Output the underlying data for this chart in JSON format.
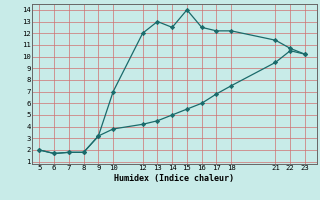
{
  "xlabel": "Humidex (Indice chaleur)",
  "background_color": "#c8ebe8",
  "line_color": "#1a6b6b",
  "grid_color": "#d07070",
  "xlim": [
    4.5,
    23.8
  ],
  "ylim": [
    0.8,
    14.5
  ],
  "xticks": [
    5,
    6,
    7,
    8,
    9,
    10,
    12,
    13,
    14,
    15,
    16,
    17,
    18,
    21,
    22,
    23
  ],
  "yticks": [
    1,
    2,
    3,
    4,
    5,
    6,
    7,
    8,
    9,
    10,
    11,
    12,
    13,
    14
  ],
  "upper_x": [
    5,
    6,
    7,
    8,
    9,
    10,
    12,
    13,
    14,
    15,
    16,
    17,
    18,
    21,
    22,
    23
  ],
  "upper_y": [
    2.0,
    1.7,
    1.8,
    1.8,
    3.2,
    7.0,
    12.0,
    13.0,
    12.5,
    14.0,
    12.5,
    12.2,
    12.2,
    11.4,
    10.7,
    10.2
  ],
  "lower_x": [
    5,
    6,
    7,
    8,
    9,
    10,
    12,
    13,
    14,
    15,
    16,
    17,
    18,
    21,
    22,
    23
  ],
  "lower_y": [
    2.0,
    1.7,
    1.8,
    1.8,
    3.2,
    3.8,
    4.2,
    4.5,
    5.0,
    5.5,
    6.0,
    6.8,
    7.5,
    9.5,
    10.5,
    10.2
  ]
}
